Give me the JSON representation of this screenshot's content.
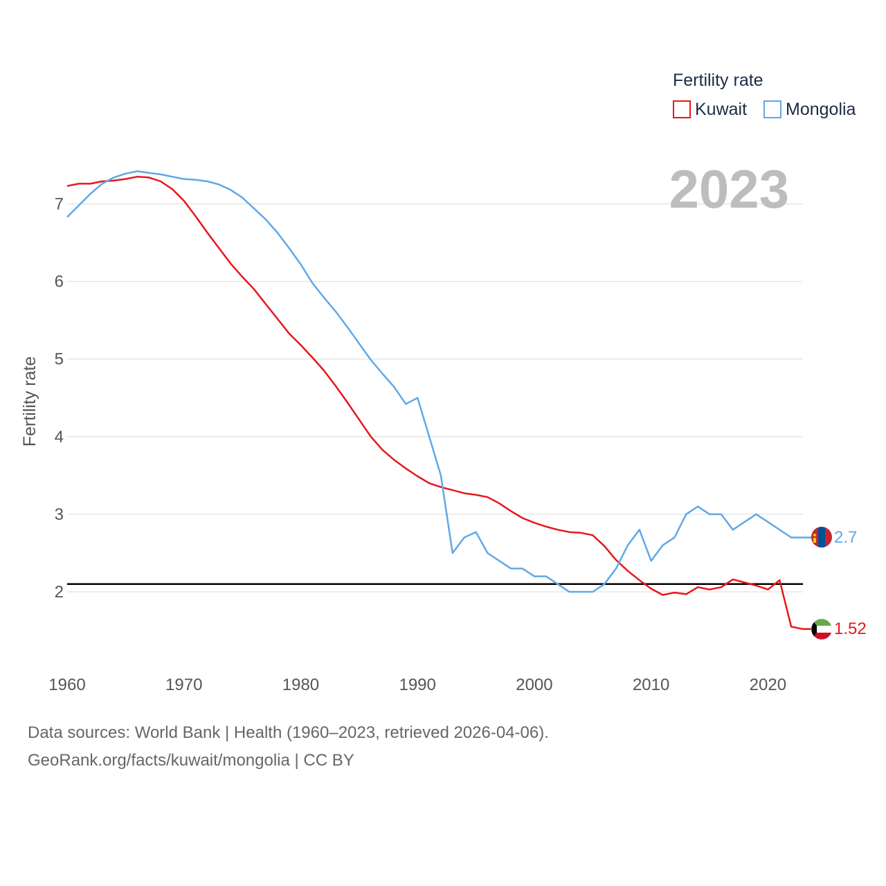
{
  "chart_data": {
    "type": "line",
    "year_display": "2023",
    "ylabel": "Fertility rate",
    "xlim": [
      1960,
      2023
    ],
    "ylim": [
      1.0,
      7.9
    ],
    "x_ticks": [
      1960,
      1970,
      1980,
      1990,
      2000,
      2010,
      2020
    ],
    "y_ticks": [
      2,
      3,
      4,
      5,
      6,
      7
    ],
    "reference_line": 2.1,
    "legend": {
      "title": "Fertility rate",
      "position": "top-right"
    },
    "years": [
      1960,
      1961,
      1962,
      1963,
      1964,
      1965,
      1966,
      1967,
      1968,
      1969,
      1970,
      1971,
      1972,
      1973,
      1974,
      1975,
      1976,
      1977,
      1978,
      1979,
      1980,
      1981,
      1982,
      1983,
      1984,
      1985,
      1986,
      1987,
      1988,
      1989,
      1990,
      1991,
      1992,
      1993,
      1994,
      1995,
      1996,
      1997,
      1998,
      1999,
      2000,
      2001,
      2002,
      2003,
      2004,
      2005,
      2006,
      2007,
      2008,
      2009,
      2010,
      2011,
      2012,
      2013,
      2014,
      2015,
      2016,
      2017,
      2018,
      2019,
      2020,
      2021,
      2022,
      2023
    ],
    "series": [
      {
        "name": "Kuwait",
        "color": "#e8161b",
        "end_label": "1.52",
        "values": [
          7.23,
          7.26,
          7.26,
          7.29,
          7.3,
          7.32,
          7.35,
          7.34,
          7.29,
          7.19,
          7.04,
          6.84,
          6.63,
          6.43,
          6.23,
          6.06,
          5.9,
          5.71,
          5.52,
          5.33,
          5.18,
          5.02,
          4.85,
          4.65,
          4.44,
          4.22,
          4.0,
          3.83,
          3.7,
          3.59,
          3.49,
          3.4,
          3.35,
          3.31,
          3.27,
          3.25,
          3.22,
          3.14,
          3.04,
          2.95,
          2.89,
          2.84,
          2.8,
          2.77,
          2.76,
          2.73,
          2.59,
          2.41,
          2.27,
          2.15,
          2.04,
          1.96,
          1.99,
          1.97,
          2.06,
          2.03,
          2.06,
          2.16,
          2.12,
          2.08,
          2.03,
          2.15,
          1.55,
          1.52
        ]
      },
      {
        "name": "Mongolia",
        "color": "#5fa8e8",
        "end_label": "2.7",
        "values": [
          6.83,
          6.98,
          7.13,
          7.26,
          7.34,
          7.39,
          7.42,
          7.4,
          7.38,
          7.35,
          7.32,
          7.31,
          7.29,
          7.25,
          7.18,
          7.08,
          6.94,
          6.8,
          6.63,
          6.43,
          6.22,
          5.98,
          5.79,
          5.61,
          5.41,
          5.2,
          4.99,
          4.81,
          4.64,
          4.42,
          4.5,
          4.0,
          3.5,
          2.5,
          2.7,
          2.77,
          2.5,
          2.4,
          2.3,
          2.3,
          2.2,
          2.2,
          2.1,
          2.0,
          2.0,
          2.0,
          2.1,
          2.3,
          2.6,
          2.8,
          2.4,
          2.6,
          2.7,
          3.0,
          3.1,
          3.0,
          3.0,
          2.8,
          2.9,
          3.0,
          2.9,
          2.8,
          2.7,
          2.7
        ]
      }
    ]
  },
  "footer": {
    "source_line": "Data sources: World Bank | Health (1960–2023, retrieved 2026-04-06).",
    "credit_line": "GeoRank.org/facts/kuwait/mongolia | CC BY"
  }
}
